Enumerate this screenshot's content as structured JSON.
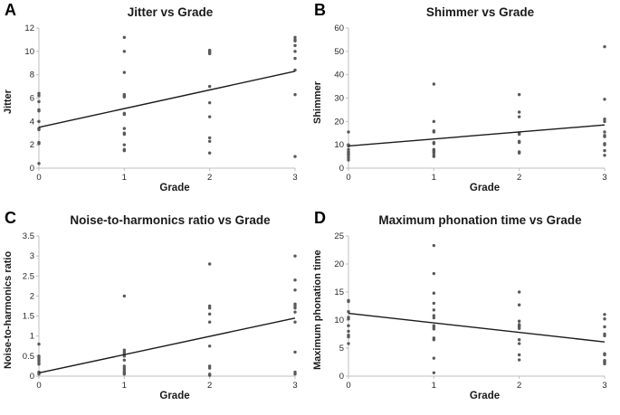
{
  "figure": {
    "background": "#ffffff",
    "point_color": "#595959",
    "trend_color": "#1a1a1a",
    "axis_color": "#bfbfbf",
    "tick_text_color": "#262626"
  },
  "chart_data": [
    {
      "type": "scatter",
      "panel_label": "A",
      "title": "Jitter vs Grade",
      "xlabel": "Grade",
      "ylabel": "Jitter",
      "xlim": [
        0,
        3
      ],
      "ylim": [
        0,
        12
      ],
      "xticks": [
        0,
        1,
        2,
        3
      ],
      "yticks": [
        0,
        2,
        4,
        6,
        8,
        10,
        12
      ],
      "grid": false,
      "legend": false,
      "groups": [
        {
          "x": 0,
          "ys": [
            0.4,
            2.1,
            2.2,
            3.3,
            3.4,
            4.0,
            4.9,
            5.0,
            5.7,
            6.2,
            6.4
          ]
        },
        {
          "x": 1,
          "ys": [
            1.5,
            1.6,
            2.0,
            2.9,
            3.0,
            3.4,
            4.6,
            4.7,
            6.1,
            6.2,
            6.3,
            8.2,
            10.0,
            11.2
          ]
        },
        {
          "x": 2,
          "ys": [
            1.3,
            2.3,
            2.6,
            4.4,
            5.6,
            7.0,
            9.8,
            9.9,
            10.0,
            10.1
          ]
        },
        {
          "x": 3,
          "ys": [
            1.0,
            6.3,
            8.4,
            9.4,
            10.0,
            10.5,
            10.9,
            11.0,
            11.2
          ]
        }
      ],
      "trendline": {
        "x1": 0,
        "y1": 3.5,
        "x2": 3,
        "y2": 8.3
      }
    },
    {
      "type": "scatter",
      "panel_label": "B",
      "title": "Shimmer vs Grade",
      "xlabel": "Grade",
      "ylabel": "Shimmer",
      "xlim": [
        0,
        3
      ],
      "ylim": [
        0,
        60
      ],
      "xticks": [
        0,
        1,
        2,
        3
      ],
      "yticks": [
        0,
        10,
        20,
        30,
        40,
        50,
        60
      ],
      "grid": false,
      "legend": false,
      "groups": [
        {
          "x": 0,
          "ys": [
            3.5,
            4.5,
            5.5,
            6.0,
            6.5,
            7.0,
            8.0,
            9.5,
            10.0,
            15.5
          ]
        },
        {
          "x": 1,
          "ys": [
            5.0,
            5.5,
            6.5,
            7.0,
            7.5,
            8.0,
            10.5,
            11.0,
            15.5,
            16.0,
            20.0,
            36.0
          ]
        },
        {
          "x": 2,
          "ys": [
            6.5,
            7.0,
            11.0,
            11.5,
            14.5,
            15.0,
            22.0,
            24.0,
            31.5
          ]
        },
        {
          "x": 3,
          "ys": [
            5.5,
            7.5,
            10.0,
            10.5,
            13.5,
            14.0,
            15.5,
            20.0,
            21.0,
            29.5,
            52.0
          ]
        }
      ],
      "trendline": {
        "x1": 0,
        "y1": 9.5,
        "x2": 3,
        "y2": 18.5
      }
    },
    {
      "type": "scatter",
      "panel_label": "C",
      "title": "Noise-to-harmonics ratio vs Grade",
      "xlabel": "Grade",
      "ylabel": "Noise-to-harmonics ratio",
      "xlim": [
        0,
        3
      ],
      "ylim": [
        0,
        3.5
      ],
      "xticks": [
        0,
        1,
        2,
        3
      ],
      "yticks": [
        0,
        0.5,
        1,
        1.5,
        2,
        2.5,
        3,
        3.5
      ],
      "grid": false,
      "legend": false,
      "groups": [
        {
          "x": 0,
          "ys": [
            0.05,
            0.08,
            0.1,
            0.3,
            0.35,
            0.4,
            0.45,
            0.5,
            0.8
          ]
        },
        {
          "x": 1,
          "ys": [
            0.05,
            0.08,
            0.1,
            0.15,
            0.2,
            0.25,
            0.4,
            0.5,
            0.55,
            0.6,
            0.65,
            2.0
          ]
        },
        {
          "x": 2,
          "ys": [
            0.02,
            0.05,
            0.2,
            0.25,
            0.75,
            1.35,
            1.55,
            1.7,
            1.75,
            2.8
          ]
        },
        {
          "x": 3,
          "ys": [
            0.05,
            0.1,
            0.6,
            1.35,
            1.6,
            1.7,
            1.75,
            1.8,
            2.15,
            2.4,
            3.0
          ]
        }
      ],
      "trendline": {
        "x1": 0,
        "y1": 0.08,
        "x2": 3,
        "y2": 1.45
      }
    },
    {
      "type": "scatter",
      "panel_label": "D",
      "title": "Maximum phonation time vs Grade",
      "xlabel": "Grade",
      "ylabel": "Maximum phonation time",
      "xlim": [
        0,
        3
      ],
      "ylim": [
        0,
        25
      ],
      "xticks": [
        0,
        1,
        2,
        3
      ],
      "yticks": [
        0,
        5,
        10,
        15,
        20,
        25
      ],
      "grid": false,
      "legend": false,
      "groups": [
        {
          "x": 0,
          "ys": [
            5.8,
            7.0,
            7.3,
            8.0,
            9.0,
            10.2,
            10.5,
            11.5,
            13.3,
            13.5
          ]
        },
        {
          "x": 1,
          "ys": [
            0.6,
            3.2,
            6.5,
            6.8,
            8.4,
            8.7,
            9.0,
            10.4,
            10.8,
            11.8,
            13.0,
            14.8,
            18.3,
            23.3
          ]
        },
        {
          "x": 2,
          "ys": [
            2.9,
            3.8,
            5.8,
            6.5,
            8.5,
            8.8,
            9.0,
            9.2,
            9.8,
            12.7,
            15.0
          ]
        },
        {
          "x": 3,
          "ys": [
            2.2,
            2.4,
            2.6,
            2.8,
            3.8,
            4.0,
            7.2,
            7.5,
            8.8,
            10.2,
            11.0
          ]
        }
      ],
      "trendline": {
        "x1": 0,
        "y1": 11.2,
        "x2": 3,
        "y2": 6.1
      }
    }
  ]
}
